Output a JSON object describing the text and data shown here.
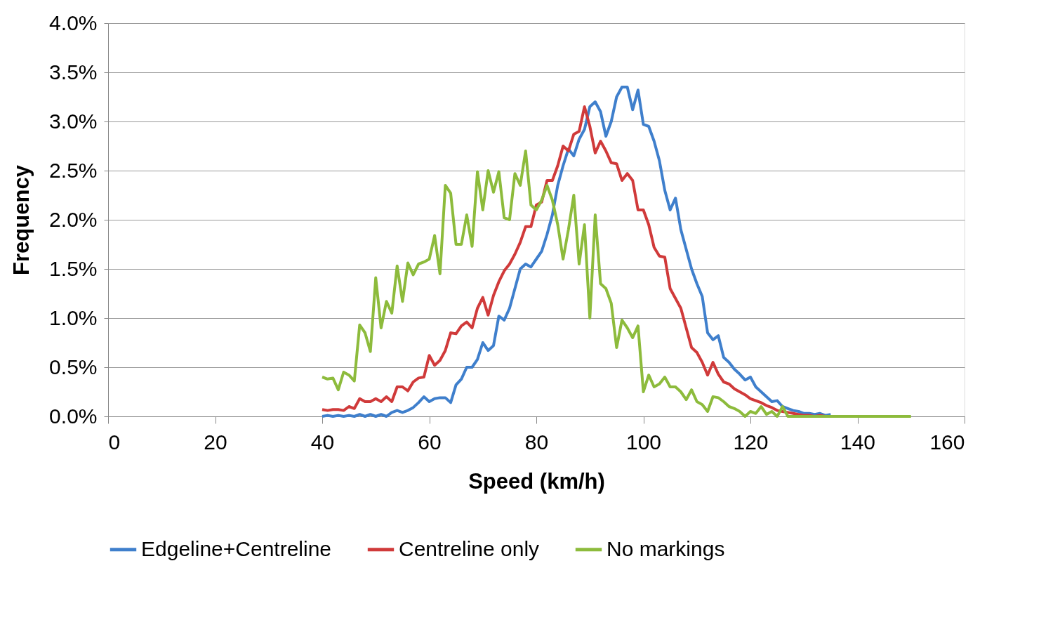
{
  "chart_data": {
    "type": "line",
    "xlabel": "Speed (km/h)",
    "ylabel": "Frequency",
    "x": [
      40,
      41,
      42,
      43,
      44,
      45,
      46,
      47,
      48,
      49,
      50,
      51,
      52,
      53,
      54,
      55,
      56,
      57,
      58,
      59,
      60,
      61,
      62,
      63,
      64,
      65,
      66,
      67,
      68,
      69,
      70,
      71,
      72,
      73,
      74,
      75,
      76,
      77,
      78,
      79,
      80,
      81,
      82,
      83,
      84,
      85,
      86,
      87,
      88,
      89,
      90,
      91,
      92,
      93,
      94,
      95,
      96,
      97,
      98,
      99,
      100,
      101,
      102,
      103,
      104,
      105,
      106,
      107,
      108,
      109,
      110,
      111,
      112,
      113,
      114,
      115,
      116,
      117,
      118,
      119,
      120,
      121,
      122,
      123,
      124,
      125,
      126,
      127,
      128,
      129,
      130,
      131,
      132,
      133,
      134,
      135,
      136,
      137,
      138,
      139,
      140,
      141,
      142,
      143,
      144,
      145,
      146,
      147,
      148,
      149,
      150
    ],
    "series": [
      {
        "name": "Edgeline+Centreline",
        "color": "#3f7fcc",
        "values": [
          0.0,
          0.01,
          0.0,
          0.01,
          0.0,
          0.01,
          0.0,
          0.02,
          0.0,
          0.02,
          0.0,
          0.02,
          0.0,
          0.04,
          0.06,
          0.04,
          0.06,
          0.09,
          0.14,
          0.2,
          0.15,
          0.18,
          0.19,
          0.19,
          0.14,
          0.32,
          0.38,
          0.5,
          0.5,
          0.58,
          0.75,
          0.67,
          0.72,
          1.02,
          0.98,
          1.1,
          1.3,
          1.5,
          1.55,
          1.52,
          1.6,
          1.68,
          1.85,
          2.05,
          2.35,
          2.55,
          2.72,
          2.65,
          2.82,
          2.92,
          3.15,
          3.2,
          3.1,
          2.85,
          3.0,
          3.25,
          3.35,
          3.35,
          3.12,
          3.32,
          2.97,
          2.95,
          2.8,
          2.6,
          2.3,
          2.1,
          2.22,
          1.9,
          1.7,
          1.5,
          1.35,
          1.22,
          0.85,
          0.78,
          0.82,
          0.6,
          0.55,
          0.48,
          0.43,
          0.37,
          0.4,
          0.3,
          0.25,
          0.2,
          0.15,
          0.16,
          0.1,
          0.08,
          0.06,
          0.05,
          0.03,
          0.03,
          0.02,
          0.03,
          0.01,
          0.02,
          null,
          null,
          null,
          null,
          null,
          null,
          null,
          null,
          null,
          null,
          null,
          null,
          null,
          null,
          null
        ]
      },
      {
        "name": "Centreline only",
        "color": "#d03a3a",
        "values": [
          0.07,
          0.06,
          0.07,
          0.07,
          0.06,
          0.1,
          0.08,
          0.18,
          0.15,
          0.15,
          0.18,
          0.15,
          0.2,
          0.15,
          0.3,
          0.3,
          0.26,
          0.35,
          0.39,
          0.4,
          0.62,
          0.52,
          0.57,
          0.67,
          0.85,
          0.84,
          0.92,
          0.96,
          0.9,
          1.1,
          1.21,
          1.03,
          1.23,
          1.37,
          1.48,
          1.55,
          1.65,
          1.77,
          1.93,
          1.93,
          2.15,
          2.18,
          2.4,
          2.4,
          2.55,
          2.75,
          2.7,
          2.87,
          2.9,
          3.15,
          2.95,
          2.68,
          2.8,
          2.7,
          2.58,
          2.57,
          2.4,
          2.47,
          2.4,
          2.1,
          2.1,
          1.95,
          1.72,
          1.63,
          1.62,
          1.3,
          1.2,
          1.1,
          0.9,
          0.7,
          0.65,
          0.55,
          0.42,
          0.55,
          0.43,
          0.35,
          0.33,
          0.28,
          0.25,
          0.22,
          0.18,
          0.16,
          0.14,
          0.11,
          0.09,
          0.06,
          0.05,
          0.04,
          0.03,
          0.02,
          0.01,
          0.01,
          0.0,
          0.01,
          0.0,
          0.0,
          null,
          null,
          null,
          null,
          null,
          null,
          null,
          null,
          null,
          null,
          null,
          null,
          null,
          null,
          null
        ]
      },
      {
        "name": "No markings",
        "color": "#8dbb3c",
        "values": [
          0.4,
          0.38,
          0.39,
          0.27,
          0.45,
          0.42,
          0.36,
          0.93,
          0.85,
          0.66,
          1.41,
          0.9,
          1.17,
          1.05,
          1.53,
          1.17,
          1.56,
          1.44,
          1.55,
          1.57,
          1.6,
          1.84,
          1.45,
          2.35,
          2.27,
          1.75,
          1.75,
          2.05,
          1.73,
          2.49,
          2.1,
          2.5,
          2.28,
          2.49,
          2.02,
          2.0,
          2.47,
          2.35,
          2.7,
          2.15,
          2.1,
          2.2,
          2.35,
          2.2,
          1.95,
          1.6,
          1.9,
          2.25,
          1.55,
          1.95,
          1.0,
          2.05,
          1.35,
          1.3,
          1.15,
          0.7,
          0.98,
          0.9,
          0.8,
          0.92,
          0.25,
          0.42,
          0.3,
          0.33,
          0.4,
          0.3,
          0.3,
          0.25,
          0.17,
          0.27,
          0.15,
          0.12,
          0.05,
          0.2,
          0.19,
          0.15,
          0.1,
          0.08,
          0.05,
          0.0,
          0.05,
          0.03,
          0.1,
          0.02,
          0.05,
          0.0,
          0.1,
          0.0,
          0.0,
          0.0,
          0.0,
          0.0,
          0.0,
          0.0,
          0.0,
          0.0,
          0.0,
          0.0,
          0.0,
          0.0,
          0.0,
          0.0,
          0.0,
          0.0,
          0.0,
          0.0,
          0.0,
          0.0,
          0.0,
          0.0,
          0.0
        ]
      }
    ],
    "xlim": [
      0,
      160
    ],
    "xticks": [
      0,
      20,
      40,
      60,
      80,
      100,
      120,
      140,
      160
    ],
    "ylim": [
      0,
      4.0
    ],
    "yticks": [
      {
        "value": 0,
        "label": "0.0%"
      },
      {
        "value": 0.5,
        "label": "0.5%"
      },
      {
        "value": 1.0,
        "label": "1.0%"
      },
      {
        "value": 1.5,
        "label": "1.5%"
      },
      {
        "value": 2.0,
        "label": "2.0%"
      },
      {
        "value": 2.5,
        "label": "2.5%"
      },
      {
        "value": 3.0,
        "label": "3.0%"
      },
      {
        "value": 3.5,
        "label": "3.5%"
      },
      {
        "value": 4.0,
        "label": "4.0%"
      }
    ],
    "grid": "y",
    "legend": "bottom",
    "marker": "none",
    "line_style": "solid"
  }
}
